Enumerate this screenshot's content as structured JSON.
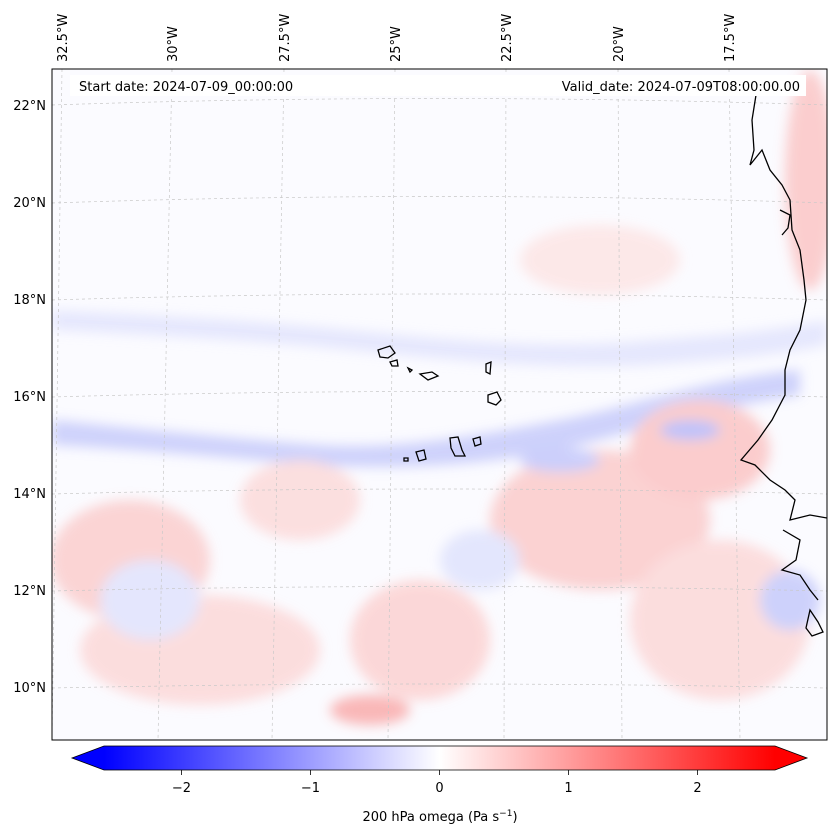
{
  "map": {
    "start_date": "Start date: 2024-07-09_00:00:00",
    "valid_date": "Valid_date: 2024-07-09T08:00:00.00",
    "lon_labels": [
      "32.5°W",
      "30°W",
      "27.5°W",
      "25°W",
      "22.5°W",
      "20°W",
      "17.5°W"
    ],
    "lat_labels": [
      "22°N",
      "20°N",
      "18°N",
      "16°N",
      "14°N",
      "12°N",
      "10°N"
    ],
    "field_name": "200 hPa omega",
    "coastline_color": "#000000",
    "gridline_color": "#c8c8c8"
  },
  "colorbar": {
    "label_main": "200 hPa omega (Pa s",
    "label_sup": "−1",
    "label_end": ")",
    "ticks": [
      "−2",
      "−1",
      "0",
      "1",
      "2"
    ],
    "tick_values": [
      -2,
      -1,
      0,
      1,
      2
    ],
    "range": [
      -2.6,
      2.6
    ],
    "colormap": "bwr",
    "negative_color": "#0000ff",
    "zero_color": "#ffffff",
    "positive_color": "#ff0000",
    "extend": "both"
  }
}
